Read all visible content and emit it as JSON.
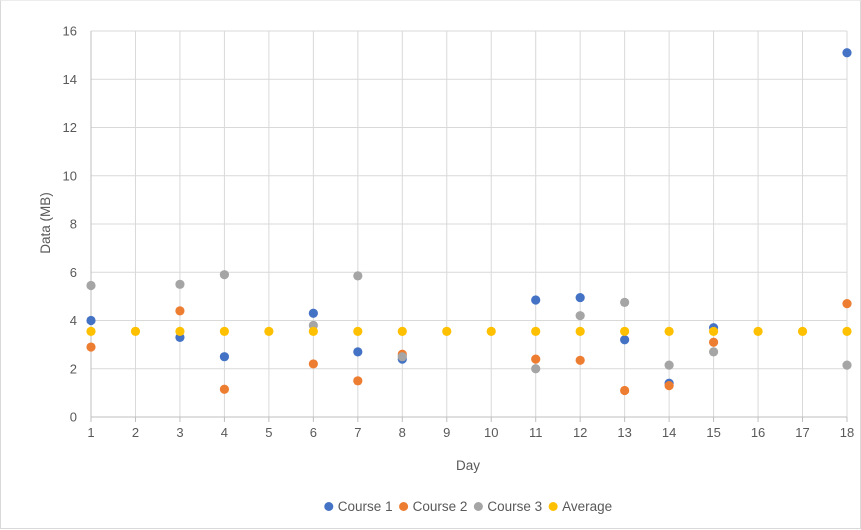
{
  "chart_data": {
    "type": "scatter",
    "title": "",
    "xlabel": "Day",
    "ylabel": "Data (MB)",
    "xlim": [
      1,
      18
    ],
    "ylim": [
      0,
      16
    ],
    "x_ticks": [
      "1",
      "2",
      "3",
      "4",
      "5",
      "6",
      "7",
      "8",
      "9",
      "10",
      "11",
      "12",
      "13",
      "14",
      "15",
      "16",
      "17",
      "18"
    ],
    "y_ticks": [
      "0",
      "2",
      "4",
      "6",
      "8",
      "10",
      "12",
      "14",
      "16"
    ],
    "grid": true,
    "legend_position": "bottom",
    "series": [
      {
        "name": "Course 1",
        "color": "#4472c4",
        "points": [
          {
            "x": 1,
            "y": 4.0
          },
          {
            "x": 3,
            "y": 3.3
          },
          {
            "x": 4,
            "y": 2.5
          },
          {
            "x": 6,
            "y": 4.3
          },
          {
            "x": 7,
            "y": 2.7
          },
          {
            "x": 8,
            "y": 2.4
          },
          {
            "x": 11,
            "y": 4.85
          },
          {
            "x": 12,
            "y": 4.95
          },
          {
            "x": 13,
            "y": 3.2
          },
          {
            "x": 14,
            "y": 1.4
          },
          {
            "x": 15,
            "y": 3.7
          },
          {
            "x": 18,
            "y": 15.1
          }
        ]
      },
      {
        "name": "Course 2",
        "color": "#ed7d31",
        "points": [
          {
            "x": 1,
            "y": 2.9
          },
          {
            "x": 3,
            "y": 4.4
          },
          {
            "x": 4,
            "y": 1.15
          },
          {
            "x": 6,
            "y": 2.2
          },
          {
            "x": 7,
            "y": 1.5
          },
          {
            "x": 8,
            "y": 2.6
          },
          {
            "x": 11,
            "y": 2.4
          },
          {
            "x": 12,
            "y": 2.35
          },
          {
            "x": 13,
            "y": 1.1
          },
          {
            "x": 14,
            "y": 1.3
          },
          {
            "x": 15,
            "y": 3.1
          },
          {
            "x": 18,
            "y": 4.7
          }
        ]
      },
      {
        "name": "Course 3",
        "color": "#a5a5a5",
        "points": [
          {
            "x": 1,
            "y": 5.45
          },
          {
            "x": 3,
            "y": 5.5
          },
          {
            "x": 4,
            "y": 5.9
          },
          {
            "x": 6,
            "y": 3.8
          },
          {
            "x": 7,
            "y": 5.85
          },
          {
            "x": 8,
            "y": 2.5
          },
          {
            "x": 11,
            "y": 2.0
          },
          {
            "x": 12,
            "y": 4.2
          },
          {
            "x": 13,
            "y": 4.75
          },
          {
            "x": 14,
            "y": 2.15
          },
          {
            "x": 15,
            "y": 2.7
          },
          {
            "x": 18,
            "y": 2.15
          }
        ]
      },
      {
        "name": "Average",
        "color": "#ffc000",
        "points": [
          {
            "x": 1,
            "y": 3.55
          },
          {
            "x": 2,
            "y": 3.55
          },
          {
            "x": 3,
            "y": 3.55
          },
          {
            "x": 4,
            "y": 3.55
          },
          {
            "x": 5,
            "y": 3.55
          },
          {
            "x": 6,
            "y": 3.55
          },
          {
            "x": 7,
            "y": 3.55
          },
          {
            "x": 8,
            "y": 3.55
          },
          {
            "x": 9,
            "y": 3.55
          },
          {
            "x": 10,
            "y": 3.55
          },
          {
            "x": 11,
            "y": 3.55
          },
          {
            "x": 12,
            "y": 3.55
          },
          {
            "x": 13,
            "y": 3.55
          },
          {
            "x": 14,
            "y": 3.55
          },
          {
            "x": 15,
            "y": 3.55
          },
          {
            "x": 16,
            "y": 3.55
          },
          {
            "x": 17,
            "y": 3.55
          },
          {
            "x": 18,
            "y": 3.55
          }
        ]
      }
    ],
    "colors": {
      "gridline": "#d9d9d9",
      "axis": "#bfbfbf",
      "text": "#595959"
    }
  }
}
